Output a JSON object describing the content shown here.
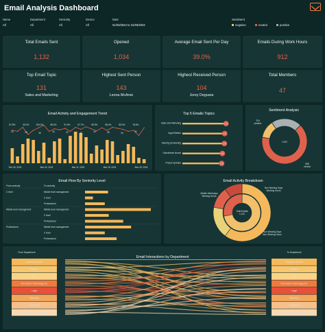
{
  "header": {
    "title": "Email Analysis Dashboard"
  },
  "filters": [
    {
      "label": "Name",
      "value": "All"
    },
    {
      "label": "Department",
      "value": "All"
    },
    {
      "label": "Seniority",
      "value": "All"
    },
    {
      "label": "Device",
      "value": "All"
    },
    {
      "label": "Date",
      "value": "01/03/2024 to 31/03/2024"
    }
  ],
  "sentiment_legend": {
    "label": "Sentiment",
    "items": [
      {
        "name": "negative",
        "color": "#f2c06b"
      },
      {
        "name": "neutral",
        "color": "#e0614b"
      },
      {
        "name": "positive",
        "color": "#a9b1b3"
      }
    ]
  },
  "kpis": [
    {
      "title": "Total Emails Sent",
      "value": "1,132"
    },
    {
      "title": "Opened",
      "value": "1,034"
    },
    {
      "title": "Average Email Sent Per Day",
      "value": "39.0%"
    },
    {
      "title": "Emails During Work Hours",
      "value": "912"
    },
    {
      "title": "Top Email Topic",
      "value": "131",
      "sub": "Sales and Marketing"
    },
    {
      "title": "Highest Sent Person",
      "value": "143",
      "sub": "Leona McAree"
    },
    {
      "title": "Highest Received Person",
      "value": "104",
      "sub": "Jorey Deguara"
    },
    {
      "title": "Total Members",
      "value": "47"
    }
  ],
  "colors": {
    "accent": "#e0614b",
    "bar": "#f5b85a",
    "line": "#e0614b",
    "panel": "#173535",
    "background": "#0d2626",
    "grey": "#a9b1b3"
  },
  "trend": {
    "title": "Email Activity and Engagement Trend",
    "x_labels": [
      "Feb 26, 2024",
      "Mar 04, 2024",
      "Mar 11, 2024",
      "Mar 18, 2024",
      "Mar 25, 2024"
    ],
    "bars": [
      22,
      10,
      28,
      36,
      34,
      18,
      30,
      8,
      32,
      36,
      6,
      40,
      46,
      44,
      38,
      14,
      26,
      20,
      34,
      32,
      12,
      18,
      28,
      24,
      8,
      6
    ],
    "line": [
      90,
      88,
      96,
      82,
      90,
      95,
      100,
      88,
      93,
      91,
      94,
      88,
      96,
      92,
      97,
      93,
      89,
      95,
      90,
      96,
      94,
      92,
      88,
      90,
      80,
      95
    ],
    "line_labels": [
      "87.8%",
      "95.0%",
      "100.0%",
      "88.0%",
      "91.9%",
      "87.7%",
      "89.5%",
      "88.4%",
      "85.0%",
      "78.6%"
    ],
    "bar_labels": [
      "22",
      "28",
      "36",
      "34",
      "40",
      "46",
      "44",
      "38",
      "34",
      "32"
    ]
  },
  "topics": {
    "title": "Top 5 Emails Topics",
    "items": [
      {
        "name": "Sales and Marketing",
        "value": 131
      },
      {
        "name": "Legal Matters",
        "value": 127
      },
      {
        "name": "Meeting Scheduling",
        "value": 126
      },
      {
        "name": "Operational Issues",
        "value": 120
      },
      {
        "name": "Project Updates",
        "value": 118
      }
    ],
    "axis_max": 140
  },
  "sentiment": {
    "title": "Sentiment Analysis",
    "center_label": "1,020",
    "slices": [
      {
        "name": "positive",
        "value": 224,
        "color": "#a9b1b3",
        "label": "224\npositive"
      },
      {
        "name": "neutral",
        "value": 668,
        "color": "#e0614b",
        "label": "668\nneutral"
      },
      {
        "name": "negative",
        "value": 128,
        "color": "#f2c06b",
        "label": ""
      }
    ]
  },
  "seniority": {
    "title": "Email Flow By Seniority Level",
    "col_from": "From seniority",
    "col_to": "To seniority",
    "groups": [
      {
        "from": "C level",
        "rows": [
          {
            "to": "Middle level management",
            "value": 35
          },
          {
            "to": "C level",
            "value": 12
          },
          {
            "to": "Professional",
            "value": 30
          }
        ]
      },
      {
        "from": "Middle level management",
        "rows": [
          {
            "to": "Middle level management",
            "value": 100
          },
          {
            "to": "C level",
            "value": 36
          },
          {
            "to": "Professional",
            "value": 58
          }
        ]
      },
      {
        "from": "Professional",
        "rows": [
          {
            "to": "Middle level management",
            "value": 70
          },
          {
            "to": "C level",
            "value": 30
          },
          {
            "to": "Professional",
            "value": 48
          }
        ]
      }
    ]
  },
  "breakdown": {
    "title": "Email Activity Breakdown",
    "center_label": "Total Emails\n1,132",
    "outer": [
      {
        "value": 60,
        "color": "#f5b85a"
      },
      {
        "value": 18,
        "color": "#e9d27a"
      },
      {
        "value": 12,
        "color": "#e0614b"
      },
      {
        "value": 10,
        "color": "#c94a3a"
      }
    ],
    "inner": [
      {
        "value": 72,
        "color": "#f2c06b"
      },
      {
        "value": 28,
        "color": "#e0614b"
      }
    ],
    "labels": [
      "Middle Weekdays\nWorking Hours",
      "Non Working Days\nWorking Hours",
      "Non Working Days\nNon Working Hours"
    ]
  },
  "departments": {
    "title": "Email Interactions by Department",
    "from_title": "From Department",
    "to_title": "To Department",
    "from_items": [
      {
        "name": "Customer Service",
        "color": "#f5b85a"
      },
      {
        "name": "Finance",
        "color": "#f7c66f"
      },
      {
        "name": "HR",
        "color": "#f9d487"
      },
      {
        "name": "Information Technology (IT)",
        "color": "#f07a3e"
      },
      {
        "name": "Legal",
        "color": "#e8503a"
      },
      {
        "name": "Marketing",
        "color": "#f2a75a"
      },
      {
        "name": "Operations",
        "color": "#f5c08a"
      },
      {
        "name": "Research & Development",
        "color": "#f8d9b2"
      }
    ],
    "to_items": [
      {
        "name": "Customer Service",
        "color": "#f5b85a"
      },
      {
        "name": "Finance",
        "color": "#f7c66f"
      },
      {
        "name": "HR",
        "color": "#f9d487"
      },
      {
        "name": "Information Technology (IT)",
        "color": "#f07a3e"
      },
      {
        "name": "Legal",
        "color": "#e8503a"
      },
      {
        "name": "Marketing",
        "color": "#f2a75a"
      },
      {
        "name": "Operations",
        "color": "#f5c08a"
      },
      {
        "name": "Research & Development",
        "color": "#f8d9b2"
      }
    ]
  }
}
